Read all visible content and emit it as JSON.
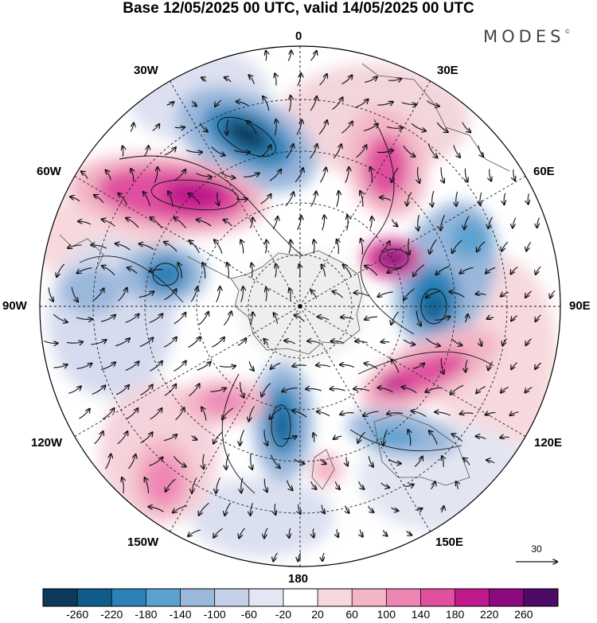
{
  "title": "Base 12/05/2025 00 UTC, valid 14/05/2025 00 UTC",
  "brand": {
    "name": "MODES",
    "mark": "©"
  },
  "longitude_labels": {
    "top": "0",
    "bottom": "180",
    "w30": "30W",
    "e30": "30E",
    "w60": "60W",
    "e60": "60E",
    "w90": "90W",
    "e90": "90E",
    "w120": "120W",
    "e120": "120E",
    "w150": "150W",
    "e150": "150E"
  },
  "reference_vector": {
    "label": "30"
  },
  "colorbar": {
    "labels": [
      "-260",
      "-220",
      "-180",
      "-140",
      "-100",
      "-60",
      "-20",
      "20",
      "60",
      "100",
      "140",
      "180",
      "220",
      "260"
    ],
    "colors": [
      "#0d3a5a",
      "#0f5c8a",
      "#2c82b8",
      "#5aa3d0",
      "#9ab7dc",
      "#c6d0e8",
      "#e4e6f3",
      "#ffffff",
      "#f7d9dd",
      "#f3b6c6",
      "#ee86b5",
      "#e0509f",
      "#c0198c",
      "#8b0a80",
      "#4d0a66"
    ]
  }
}
